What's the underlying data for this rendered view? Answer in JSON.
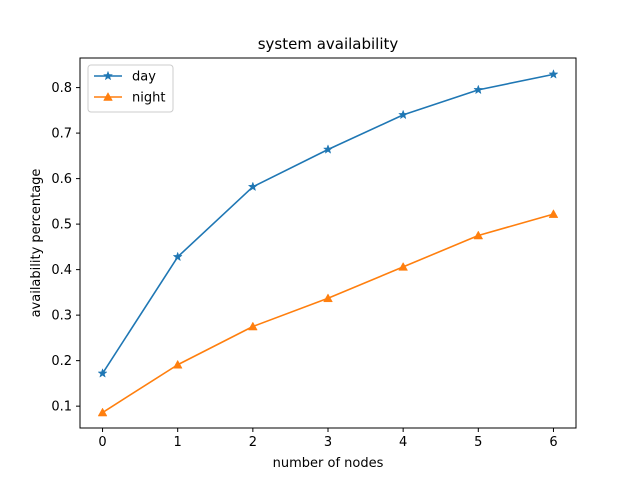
{
  "chart_data": {
    "type": "line",
    "title": "system availability",
    "xlabel": "number of nodes",
    "ylabel": "availability percentage",
    "x": [
      0,
      1,
      2,
      3,
      4,
      5,
      6
    ],
    "xlim": [
      -0.3,
      6.3
    ],
    "ylim": [
      0.052,
      0.865
    ],
    "xticks": [
      0,
      1,
      2,
      3,
      4,
      5,
      6
    ],
    "yticks": [
      0.1,
      0.2,
      0.3,
      0.4,
      0.5,
      0.6,
      0.7,
      0.8
    ],
    "grid": false,
    "legend_position": "upper-left",
    "series": [
      {
        "name": "day",
        "color": "#1f77b4",
        "marker": "star",
        "values": [
          0.172,
          0.428,
          0.582,
          0.664,
          0.74,
          0.795,
          0.829
        ]
      },
      {
        "name": "night",
        "color": "#ff7f0e",
        "marker": "triangle-up",
        "values": [
          0.086,
          0.191,
          0.275,
          0.337,
          0.406,
          0.475,
          0.522
        ]
      }
    ]
  }
}
